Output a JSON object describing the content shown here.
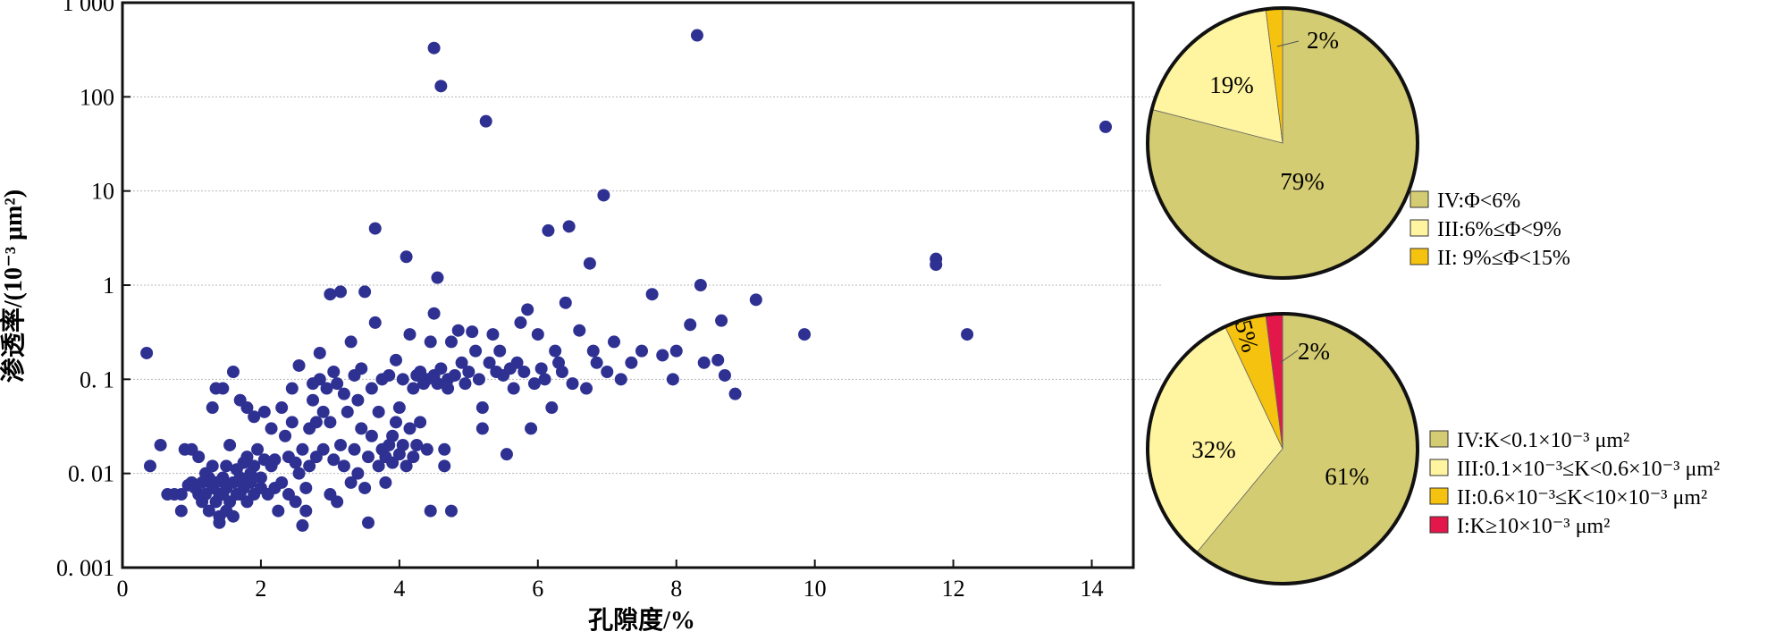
{
  "chart_data": [
    {
      "type": "scatter",
      "xlabel": "孔隙度/%",
      "ylabel": "渗透率/(10⁻³ μm²)",
      "xlim": [
        0,
        14.6
      ],
      "ylim": [
        0.001,
        1000
      ],
      "yscale": "log",
      "grid": "horizontal dotted",
      "x_ticks": [
        {
          "value": 0,
          "label": "0"
        },
        {
          "value": 2,
          "label": "2"
        },
        {
          "value": 4,
          "label": "4"
        },
        {
          "value": 6,
          "label": "6"
        },
        {
          "value": 8,
          "label": "8"
        },
        {
          "value": 10,
          "label": "10"
        },
        {
          "value": 12,
          "label": "12"
        },
        {
          "value": 14,
          "label": "14"
        }
      ],
      "y_ticks": [
        {
          "value": 0.001,
          "label": "0. 001"
        },
        {
          "value": 0.01,
          "label": "0. 01"
        },
        {
          "value": 0.1,
          "label": "0. 1"
        },
        {
          "value": 1,
          "label": "1"
        },
        {
          "value": 10,
          "label": "10"
        },
        {
          "value": 100,
          "label": "100"
        },
        {
          "value": 1000,
          "label": "1 000"
        }
      ],
      "marker_color": "#2e3192",
      "points": [
        [
          0.35,
          0.19
        ],
        [
          0.4,
          0.012
        ],
        [
          0.55,
          0.02
        ],
        [
          0.65,
          0.006
        ],
        [
          0.75,
          0.006
        ],
        [
          0.85,
          0.006
        ],
        [
          0.85,
          0.004
        ],
        [
          0.9,
          0.018
        ],
        [
          0.95,
          0.0075
        ],
        [
          1.0,
          0.018
        ],
        [
          1.0,
          0.008
        ],
        [
          1.05,
          0.007
        ],
        [
          1.1,
          0.006
        ],
        [
          1.1,
          0.015
        ],
        [
          1.15,
          0.005
        ],
        [
          1.15,
          0.008
        ],
        [
          1.2,
          0.01
        ],
        [
          1.2,
          0.006
        ],
        [
          1.25,
          0.004
        ],
        [
          1.25,
          0.009
        ],
        [
          1.3,
          0.007
        ],
        [
          1.3,
          0.012
        ],
        [
          1.35,
          0.005
        ],
        [
          1.35,
          0.008
        ],
        [
          1.3,
          0.05
        ],
        [
          1.35,
          0.08
        ],
        [
          1.4,
          0.0035
        ],
        [
          1.4,
          0.006
        ],
        [
          1.4,
          0.003
        ],
        [
          1.45,
          0.009
        ],
        [
          1.45,
          0.006
        ],
        [
          1.45,
          0.08
        ],
        [
          1.5,
          0.012
        ],
        [
          1.5,
          0.004
        ],
        [
          1.5,
          0.007
        ],
        [
          1.55,
          0.005
        ],
        [
          1.55,
          0.02
        ],
        [
          1.6,
          0.008
        ],
        [
          1.6,
          0.0035
        ],
        [
          1.6,
          0.12
        ],
        [
          1.65,
          0.006
        ],
        [
          1.65,
          0.011
        ],
        [
          1.7,
          0.009
        ],
        [
          1.7,
          0.006
        ],
        [
          1.7,
          0.06
        ],
        [
          1.75,
          0.007
        ],
        [
          1.75,
          0.013
        ],
        [
          1.8,
          0.005
        ],
        [
          1.8,
          0.015
        ],
        [
          1.8,
          0.05
        ],
        [
          1.85,
          0.008
        ],
        [
          1.85,
          0.01
        ],
        [
          1.9,
          0.012
        ],
        [
          1.9,
          0.006
        ],
        [
          1.9,
          0.04
        ],
        [
          1.95,
          0.018
        ],
        [
          2.0,
          0.007
        ],
        [
          2.0,
          0.009
        ],
        [
          2.05,
          0.014
        ],
        [
          2.05,
          0.045
        ],
        [
          2.1,
          0.006
        ],
        [
          2.15,
          0.012
        ],
        [
          2.15,
          0.03
        ],
        [
          2.2,
          0.014
        ],
        [
          2.2,
          0.007
        ],
        [
          2.25,
          0.004
        ],
        [
          2.3,
          0.05
        ],
        [
          2.3,
          0.008
        ],
        [
          2.35,
          0.025
        ],
        [
          2.4,
          0.015
        ],
        [
          2.4,
          0.006
        ],
        [
          2.45,
          0.035
        ],
        [
          2.45,
          0.08
        ],
        [
          2.5,
          0.013
        ],
        [
          2.5,
          0.005
        ],
        [
          2.55,
          0.01
        ],
        [
          2.55,
          0.14
        ],
        [
          2.6,
          0.0028
        ],
        [
          2.6,
          0.018
        ],
        [
          2.65,
          0.007
        ],
        [
          2.65,
          0.004
        ],
        [
          2.7,
          0.03
        ],
        [
          2.7,
          0.012
        ],
        [
          2.75,
          0.09
        ],
        [
          2.75,
          0.06
        ],
        [
          2.8,
          0.015
        ],
        [
          2.8,
          0.035
        ],
        [
          2.85,
          0.1
        ],
        [
          2.85,
          0.19
        ],
        [
          2.9,
          0.018
        ],
        [
          2.9,
          0.045
        ],
        [
          2.95,
          0.08
        ],
        [
          3.0,
          0.006
        ],
        [
          3.0,
          0.8
        ],
        [
          3.0,
          0.035
        ],
        [
          3.05,
          0.12
        ],
        [
          3.05,
          0.014
        ],
        [
          3.1,
          0.09
        ],
        [
          3.1,
          0.005
        ],
        [
          3.15,
          0.85
        ],
        [
          3.15,
          0.02
        ],
        [
          3.2,
          0.07
        ],
        [
          3.2,
          0.012
        ],
        [
          3.25,
          0.045
        ],
        [
          3.3,
          0.25
        ],
        [
          3.3,
          0.008
        ],
        [
          3.35,
          0.11
        ],
        [
          3.35,
          0.018
        ],
        [
          3.4,
          0.06
        ],
        [
          3.4,
          0.01
        ],
        [
          3.45,
          0.13
        ],
        [
          3.45,
          0.03
        ],
        [
          3.5,
          0.85
        ],
        [
          3.5,
          0.007
        ],
        [
          3.55,
          0.015
        ],
        [
          3.55,
          0.003
        ],
        [
          3.6,
          0.08
        ],
        [
          3.6,
          0.025
        ],
        [
          3.65,
          4.0
        ],
        [
          3.65,
          0.4
        ],
        [
          3.7,
          0.012
        ],
        [
          3.7,
          0.045
        ],
        [
          3.75,
          0.1
        ],
        [
          3.75,
          0.018
        ],
        [
          3.8,
          0.008
        ],
        [
          3.8,
          0.015
        ],
        [
          3.85,
          0.02
        ],
        [
          3.85,
          0.11
        ],
        [
          3.9,
          0.013
        ],
        [
          3.9,
          0.025
        ],
        [
          3.95,
          0.16
        ],
        [
          3.95,
          0.035
        ],
        [
          4.0,
          0.016
        ],
        [
          4.0,
          0.05
        ],
        [
          4.05,
          0.02
        ],
        [
          4.05,
          0.1
        ],
        [
          4.1,
          0.012
        ],
        [
          4.1,
          2.0
        ],
        [
          4.15,
          0.03
        ],
        [
          4.15,
          0.3
        ],
        [
          4.2,
          0.08
        ],
        [
          4.2,
          0.015
        ],
        [
          4.25,
          0.11
        ],
        [
          4.25,
          0.02
        ],
        [
          4.3,
          0.12
        ],
        [
          4.3,
          0.035
        ],
        [
          4.35,
          0.09
        ],
        [
          4.4,
          0.1
        ],
        [
          4.4,
          0.018
        ],
        [
          4.45,
          0.25
        ],
        [
          4.45,
          0.004
        ],
        [
          4.5,
          0.5
        ],
        [
          4.5,
          0.11
        ],
        [
          4.5,
          330
        ],
        [
          4.55,
          1.2
        ],
        [
          4.55,
          0.09
        ],
        [
          4.6,
          130
        ],
        [
          4.6,
          0.13
        ],
        [
          4.65,
          0.018
        ],
        [
          4.65,
          0.012
        ],
        [
          4.7,
          0.1
        ],
        [
          4.7,
          0.08
        ],
        [
          4.75,
          0.25
        ],
        [
          4.75,
          0.004
        ],
        [
          4.8,
          0.11
        ],
        [
          4.85,
          0.33
        ],
        [
          4.9,
          0.15
        ],
        [
          4.95,
          0.09
        ],
        [
          5.0,
          0.12
        ],
        [
          5.05,
          0.32
        ],
        [
          5.1,
          0.2
        ],
        [
          5.15,
          0.1
        ],
        [
          5.2,
          0.05
        ],
        [
          5.2,
          0.03
        ],
        [
          5.25,
          55
        ],
        [
          5.3,
          0.15
        ],
        [
          5.35,
          0.3
        ],
        [
          5.4,
          0.12
        ],
        [
          5.45,
          0.2
        ],
        [
          5.5,
          0.11
        ],
        [
          5.55,
          0.016
        ],
        [
          5.6,
          0.13
        ],
        [
          5.65,
          0.08
        ],
        [
          5.7,
          0.15
        ],
        [
          5.75,
          0.4
        ],
        [
          5.8,
          0.12
        ],
        [
          5.85,
          0.55
        ],
        [
          5.9,
          0.03
        ],
        [
          5.95,
          0.09
        ],
        [
          6.0,
          0.3
        ],
        [
          6.05,
          0.13
        ],
        [
          6.1,
          0.1
        ],
        [
          6.15,
          3.8
        ],
        [
          6.2,
          0.05
        ],
        [
          6.25,
          0.2
        ],
        [
          6.3,
          0.15
        ],
        [
          6.35,
          0.12
        ],
        [
          6.4,
          0.65
        ],
        [
          6.45,
          4.2
        ],
        [
          6.5,
          0.09
        ],
        [
          6.6,
          0.33
        ],
        [
          6.7,
          0.08
        ],
        [
          6.75,
          1.7
        ],
        [
          6.8,
          0.2
        ],
        [
          6.85,
          0.15
        ],
        [
          6.95,
          9.0
        ],
        [
          7.0,
          0.12
        ],
        [
          7.1,
          0.25
        ],
        [
          7.2,
          0.1
        ],
        [
          7.35,
          0.15
        ],
        [
          7.5,
          0.2
        ],
        [
          7.65,
          0.8
        ],
        [
          7.8,
          0.18
        ],
        [
          7.95,
          0.1
        ],
        [
          8.0,
          0.2
        ],
        [
          8.2,
          0.38
        ],
        [
          8.3,
          450
        ],
        [
          8.35,
          1.0
        ],
        [
          8.4,
          0.15
        ],
        [
          8.6,
          0.16
        ],
        [
          8.65,
          0.42
        ],
        [
          8.7,
          0.11
        ],
        [
          8.85,
          0.07
        ],
        [
          9.15,
          0.7
        ],
        [
          9.85,
          0.3
        ],
        [
          11.75,
          1.9
        ],
        [
          11.75,
          1.65
        ],
        [
          12.2,
          0.3
        ],
        [
          14.2,
          48
        ]
      ]
    },
    {
      "type": "pie",
      "slices": [
        {
          "label": "IV:Φ<6%",
          "value": 79,
          "text": "79%",
          "color": "#d4cc72"
        },
        {
          "label": "III:6%≤Φ<9%",
          "value": 19,
          "text": "19%",
          "color": "#fff5a0"
        },
        {
          "label": "II: 9%≤Φ<15%",
          "value": 2,
          "text": "2%",
          "color": "#f5c20f"
        }
      ]
    },
    {
      "type": "pie",
      "slices": [
        {
          "label": "IV:K<0.1×10⁻³ μm²",
          "value": 61,
          "text": "61%",
          "color": "#d4cc72"
        },
        {
          "label": "III:0.1×10⁻³≤K<0.6×10⁻³ μm²",
          "value": 32,
          "text": "32%",
          "color": "#fff5a0"
        },
        {
          "label": "II:0.6×10⁻³≤K<10×10⁻³ μm²",
          "value": 5,
          "text": "5%",
          "color": "#f5c20f"
        },
        {
          "label": "I:K≥10×10⁻³ μm²",
          "value": 2,
          "text": "2%",
          "color": "#e3174a"
        }
      ]
    }
  ]
}
